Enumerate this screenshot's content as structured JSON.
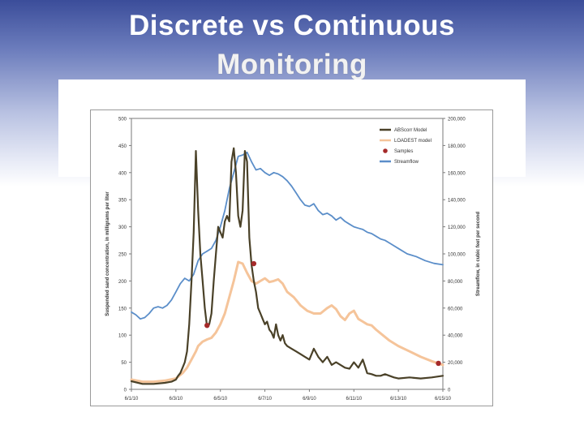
{
  "slide": {
    "title_line1": "Discrete vs Continuous",
    "title_line2": "Monitoring"
  },
  "chart_data": {
    "type": "line",
    "ylabel": "Suspended sand concentration, in milligrams per liter",
    "y2label": "Streamflow, in cubic feet per second",
    "ylim": [
      0,
      500
    ],
    "y2lim": [
      0,
      200000
    ],
    "x_ticks": [
      "6/1/10",
      "6/3/10",
      "6/5/10",
      "6/7/10",
      "6/9/10",
      "6/11/10",
      "6/13/10",
      "6/15/10"
    ],
    "y_ticks": [
      "0",
      "50",
      "100",
      "150",
      "200",
      "250",
      "300",
      "350",
      "400",
      "450",
      "500"
    ],
    "y2_ticks": [
      "0",
      "20,000",
      "40,000",
      "60,000",
      "80,000",
      "100,000",
      "120,000",
      "140,000",
      "160,000",
      "180,000",
      "200,000"
    ],
    "legend": {
      "position": "top-right",
      "entries": [
        "ABScorr Model",
        "LOADEST model",
        "Samples",
        "Streamflow"
      ]
    },
    "colors": {
      "abscorr": "#4a4128",
      "loadest": "#f5c49a",
      "samples": "#a52a2a",
      "streamflow": "#5b8ec9"
    },
    "series": [
      {
        "name": "ABScorr Model",
        "axis": "left",
        "x": [
          0,
          0.5,
          1.0,
          1.5,
          1.8,
          2.0,
          2.1,
          2.2,
          2.3,
          2.4,
          2.5,
          2.6,
          2.7,
          2.8,
          2.9,
          3.0,
          3.1,
          3.2,
          3.3,
          3.4,
          3.5,
          3.6,
          3.7,
          3.8,
          3.9,
          4.0,
          4.1,
          4.2,
          4.3,
          4.4,
          4.5,
          4.6,
          4.7,
          4.8,
          4.9,
          5.0,
          5.1,
          5.2,
          5.3,
          5.4,
          5.5,
          5.6,
          5.7,
          5.8,
          5.9,
          6.0,
          6.1,
          6.2,
          6.3,
          6.4,
          6.5,
          6.6,
          6.7,
          6.8,
          6.9,
          7.0,
          7.2,
          7.4,
          7.6,
          7.8,
          8.0,
          8.2,
          8.4,
          8.6,
          8.8,
          9.0,
          9.2,
          9.4,
          9.6,
          9.8,
          10.0,
          10.2,
          10.4,
          10.6,
          10.8,
          11.0,
          11.2,
          11.4,
          11.6,
          11.8,
          12.0,
          12.5,
          13.0,
          13.5,
          14.0
        ],
        "y": [
          15,
          10,
          10,
          12,
          14,
          18,
          25,
          30,
          40,
          50,
          70,
          120,
          200,
          290,
          440,
          330,
          250,
          200,
          150,
          115,
          120,
          140,
          200,
          250,
          300,
          290,
          280,
          310,
          320,
          310,
          420,
          445,
          400,
          320,
          300,
          330,
          440,
          420,
          280,
          230,
          200,
          180,
          150,
          140,
          130,
          120,
          125,
          110,
          105,
          95,
          120,
          100,
          90,
          100,
          85,
          80,
          75,
          70,
          65,
          60,
          55,
          75,
          60,
          50,
          60,
          45,
          50,
          45,
          40,
          38,
          50,
          40,
          55,
          30,
          28,
          25,
          25,
          28,
          25,
          22,
          20,
          22,
          20,
          22,
          25
        ]
      },
      {
        "name": "LOADEST model",
        "axis": "left",
        "x": [
          0,
          0.5,
          1.0,
          1.5,
          2.0,
          2.3,
          2.5,
          2.7,
          2.9,
          3.0,
          3.2,
          3.4,
          3.6,
          3.8,
          4.0,
          4.2,
          4.4,
          4.6,
          4.8,
          5.0,
          5.2,
          5.4,
          5.6,
          5.8,
          6.0,
          6.2,
          6.4,
          6.6,
          6.8,
          7.0,
          7.3,
          7.6,
          7.9,
          8.2,
          8.5,
          8.8,
          9.0,
          9.2,
          9.4,
          9.6,
          9.8,
          10.0,
          10.2,
          10.4,
          10.6,
          10.8,
          11.0,
          11.3,
          11.6,
          12.0,
          12.5,
          13.0,
          13.5,
          14.0
        ],
        "y": [
          18,
          14,
          14,
          16,
          20,
          30,
          40,
          55,
          70,
          80,
          88,
          92,
          95,
          105,
          120,
          140,
          170,
          200,
          235,
          232,
          215,
          200,
          195,
          200,
          205,
          198,
          200,
          203,
          195,
          180,
          170,
          155,
          145,
          140,
          140,
          150,
          155,
          148,
          135,
          128,
          140,
          145,
          130,
          125,
          120,
          118,
          110,
          100,
          90,
          80,
          70,
          60,
          52,
          45
        ]
      },
      {
        "name": "Samples",
        "axis": "left",
        "x": [
          3.4,
          5.5,
          13.8
        ],
        "y": [
          118,
          232,
          48
        ]
      },
      {
        "name": "Streamflow",
        "axis": "right",
        "x": [
          0,
          0.2,
          0.4,
          0.6,
          0.8,
          1.0,
          1.2,
          1.4,
          1.6,
          1.8,
          2.0,
          2.2,
          2.4,
          2.6,
          2.8,
          3.0,
          3.2,
          3.4,
          3.6,
          3.8,
          4.0,
          4.2,
          4.4,
          4.6,
          4.8,
          5.0,
          5.2,
          5.4,
          5.6,
          5.8,
          6.0,
          6.2,
          6.4,
          6.6,
          6.8,
          7.0,
          7.2,
          7.4,
          7.6,
          7.8,
          8.0,
          8.2,
          8.4,
          8.6,
          8.8,
          9.0,
          9.2,
          9.4,
          9.6,
          9.8,
          10.0,
          10.2,
          10.4,
          10.6,
          10.8,
          11.0,
          11.2,
          11.4,
          11.6,
          11.8,
          12.0,
          12.4,
          12.8,
          13.2,
          13.6,
          14.0
        ],
        "y": [
          57000,
          55000,
          52000,
          53000,
          56000,
          60000,
          61000,
          60000,
          62000,
          66000,
          72000,
          78000,
          82000,
          80000,
          85000,
          95000,
          100000,
          102000,
          104000,
          110000,
          120000,
          132000,
          148000,
          160000,
          172000,
          173000,
          175000,
          168000,
          162000,
          163000,
          160000,
          158000,
          160000,
          159000,
          157000,
          154000,
          150000,
          145000,
          140000,
          136000,
          135000,
          137000,
          132000,
          129000,
          130000,
          128000,
          125000,
          127000,
          124000,
          122000,
          120000,
          119000,
          118000,
          116000,
          115000,
          113000,
          111000,
          110000,
          108000,
          106000,
          104000,
          100000,
          98000,
          95000,
          93000,
          92000
        ]
      }
    ]
  }
}
